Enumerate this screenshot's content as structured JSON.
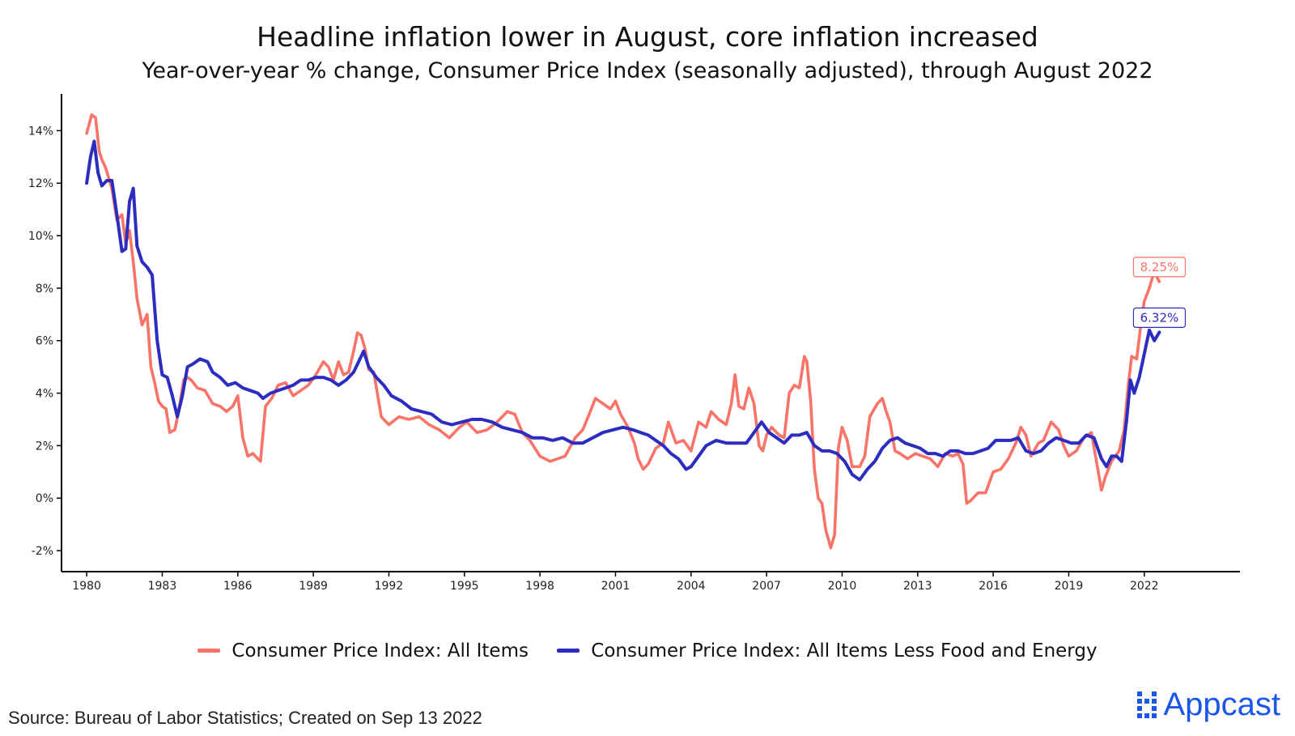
{
  "title": "Headline inflation lower in August, core inflation increased",
  "subtitle": "Year-over-year % change, Consumer Price Index (seasonally adjusted), through August 2022",
  "source": "Source: Bureau of Labor Statistics; Created on Sep 13 2022",
  "brand": {
    "name": "Appcast",
    "icon": "dot-grid-icon",
    "color": "#1a56e8"
  },
  "chart_data": {
    "type": "line",
    "title": "",
    "xlabel": "",
    "ylabel": "",
    "xlim": [
      1979.0,
      2025.8
    ],
    "ylim": [
      -2.8,
      15.4
    ],
    "x_ticks": [
      1980,
      1983,
      1986,
      1989,
      1992,
      1995,
      1998,
      2001,
      2004,
      2007,
      2010,
      2013,
      2016,
      2019,
      2022
    ],
    "x_tick_labels": [
      "1980",
      "1983",
      "1986",
      "1989",
      "1992",
      "1995",
      "1998",
      "2001",
      "2004",
      "2007",
      "2010",
      "2013",
      "2016",
      "2019",
      "2022"
    ],
    "y_ticks": [
      -2,
      0,
      2,
      4,
      6,
      8,
      10,
      12,
      14
    ],
    "y_tick_labels": [
      "-2%",
      "0%",
      "2%",
      "4%",
      "6%",
      "8%",
      "10%",
      "12%",
      "14%"
    ],
    "grid": false,
    "legend_position": "bottom",
    "series": [
      {
        "name": "Consumer Price Index: All Items",
        "color": "#f87368",
        "end_label": "8.25%",
        "x": [
          1980.0,
          1980.2,
          1980.35,
          1980.5,
          1980.6,
          1980.75,
          1981.0,
          1981.2,
          1981.4,
          1981.55,
          1981.7,
          1981.85,
          1982.0,
          1982.2,
          1982.4,
          1982.55,
          1982.7,
          1982.85,
          1983.0,
          1983.15,
          1983.3,
          1983.5,
          1983.65,
          1983.85,
          1984.0,
          1984.15,
          1984.4,
          1984.7,
          1985.0,
          1985.3,
          1985.55,
          1985.8,
          1986.0,
          1986.2,
          1986.4,
          1986.6,
          1986.9,
          1987.1,
          1987.35,
          1987.6,
          1987.9,
          1988.2,
          1988.5,
          1988.8,
          1989.1,
          1989.4,
          1989.6,
          1989.8,
          1990.0,
          1990.2,
          1990.4,
          1990.6,
          1990.75,
          1990.9,
          1991.05,
          1991.2,
          1991.4,
          1991.7,
          1992.0,
          1992.4,
          1992.8,
          1993.2,
          1993.6,
          1994.0,
          1994.4,
          1994.8,
          1995.1,
          1995.5,
          1995.9,
          1996.3,
          1996.7,
          1997.0,
          1997.3,
          1997.6,
          1998.0,
          1998.4,
          1998.7,
          1999.0,
          1999.4,
          1999.7,
          2000.0,
          2000.2,
          2000.5,
          2000.8,
          2001.0,
          2001.2,
          2001.5,
          2001.75,
          2001.9,
          2002.1,
          2002.3,
          2002.6,
          2002.9,
          2003.1,
          2003.4,
          2003.7,
          2004.0,
          2004.3,
          2004.6,
          2004.8,
          2005.1,
          2005.4,
          2005.6,
          2005.75,
          2005.9,
          2006.1,
          2006.3,
          2006.5,
          2006.7,
          2006.85,
          2007.0,
          2007.2,
          2007.5,
          2007.7,
          2007.9,
          2008.1,
          2008.3,
          2008.5,
          2008.6,
          2008.75,
          2008.9,
          2009.05,
          2009.2,
          2009.35,
          2009.55,
          2009.7,
          2009.85,
          2010.0,
          2010.2,
          2010.4,
          2010.7,
          2010.9,
          2011.1,
          2011.4,
          2011.6,
          2011.75,
          2011.9,
          2012.1,
          2012.3,
          2012.6,
          2012.9,
          2013.2,
          2013.5,
          2013.8,
          2014.1,
          2014.4,
          2014.6,
          2014.8,
          2014.95,
          2015.1,
          2015.4,
          2015.7,
          2016.0,
          2016.3,
          2016.6,
          2016.9,
          2017.1,
          2017.3,
          2017.5,
          2017.8,
          2018.0,
          2018.3,
          2018.6,
          2018.8,
          2019.0,
          2019.3,
          2019.6,
          2019.9,
          2020.1,
          2020.3,
          2020.45,
          2020.7,
          2021.0,
          2021.2,
          2021.35,
          2021.5,
          2021.7,
          2021.9,
          2022.0,
          2022.2,
          2022.35,
          2022.45,
          2022.6
        ],
        "y": [
          13.9,
          14.6,
          14.5,
          13.2,
          12.9,
          12.6,
          11.8,
          10.6,
          10.8,
          9.7,
          10.2,
          9.0,
          7.6,
          6.6,
          7.0,
          5.0,
          4.4,
          3.7,
          3.5,
          3.4,
          2.5,
          2.6,
          3.3,
          4.5,
          4.6,
          4.5,
          4.2,
          4.1,
          3.6,
          3.5,
          3.3,
          3.5,
          3.9,
          2.3,
          1.6,
          1.7,
          1.4,
          3.5,
          3.8,
          4.3,
          4.4,
          3.9,
          4.1,
          4.3,
          4.7,
          5.2,
          5.0,
          4.5,
          5.2,
          4.7,
          4.8,
          5.6,
          6.3,
          6.2,
          5.7,
          4.9,
          4.8,
          3.1,
          2.8,
          3.1,
          3.0,
          3.1,
          2.8,
          2.6,
          2.3,
          2.7,
          2.9,
          2.5,
          2.6,
          2.9,
          3.3,
          3.2,
          2.5,
          2.2,
          1.6,
          1.4,
          1.5,
          1.6,
          2.3,
          2.6,
          3.3,
          3.8,
          3.6,
          3.4,
          3.7,
          3.2,
          2.7,
          2.1,
          1.5,
          1.1,
          1.3,
          1.9,
          2.1,
          2.9,
          2.1,
          2.2,
          1.8,
          2.9,
          2.7,
          3.3,
          3.0,
          2.8,
          3.6,
          4.7,
          3.5,
          3.4,
          4.2,
          3.6,
          2.0,
          1.8,
          2.4,
          2.7,
          2.4,
          2.3,
          4.0,
          4.3,
          4.2,
          5.4,
          5.2,
          3.7,
          1.1,
          0.0,
          -0.2,
          -1.2,
          -1.9,
          -1.4,
          1.9,
          2.7,
          2.2,
          1.2,
          1.2,
          1.6,
          3.1,
          3.6,
          3.8,
          3.3,
          2.9,
          1.8,
          1.7,
          1.5,
          1.7,
          1.6,
          1.5,
          1.2,
          1.7,
          1.6,
          1.7,
          1.3,
          -0.2,
          -0.1,
          0.2,
          0.2,
          1.0,
          1.1,
          1.5,
          2.1,
          2.7,
          2.4,
          1.6,
          2.1,
          2.2,
          2.9,
          2.6,
          2.0,
          1.6,
          1.8,
          2.3,
          2.5,
          1.4,
          0.3,
          0.8,
          1.4,
          1.8,
          2.6,
          4.2,
          5.4,
          5.3,
          6.9,
          7.5,
          8.0,
          8.5,
          8.5,
          8.25
        ]
      },
      {
        "name": "Consumer Price Index: All Items Less Food and Energy",
        "color": "#2c2dc0",
        "end_label": "6.32%",
        "x": [
          1980.0,
          1980.15,
          1980.3,
          1980.45,
          1980.6,
          1980.8,
          1981.0,
          1981.2,
          1981.4,
          1981.55,
          1981.7,
          1981.85,
          1982.0,
          1982.2,
          1982.4,
          1982.6,
          1982.8,
          1983.0,
          1983.2,
          1983.4,
          1983.6,
          1983.8,
          1984.0,
          1984.2,
          1984.5,
          1984.8,
          1985.0,
          1985.3,
          1985.6,
          1985.9,
          1986.2,
          1986.5,
          1986.8,
          1987.0,
          1987.3,
          1987.6,
          1987.9,
          1988.2,
          1988.5,
          1988.8,
          1989.1,
          1989.4,
          1989.7,
          1990.0,
          1990.3,
          1990.6,
          1990.8,
          1991.0,
          1991.2,
          1991.5,
          1991.8,
          1992.1,
          1992.5,
          1992.9,
          1993.3,
          1993.7,
          1994.1,
          1994.5,
          1994.9,
          1995.3,
          1995.7,
          1996.1,
          1996.5,
          1996.9,
          1997.3,
          1997.7,
          1998.1,
          1998.5,
          1998.9,
          1999.3,
          1999.7,
          2000.1,
          2000.5,
          2000.9,
          2001.3,
          2001.7,
          2002.0,
          2002.3,
          2002.6,
          2002.9,
          2003.2,
          2003.5,
          2003.8,
          2004.0,
          2004.3,
          2004.6,
          2005.0,
          2005.4,
          2005.8,
          2006.2,
          2006.5,
          2006.8,
          2007.1,
          2007.4,
          2007.7,
          2008.0,
          2008.3,
          2008.6,
          2008.9,
          2009.2,
          2009.5,
          2009.8,
          2010.1,
          2010.4,
          2010.7,
          2011.0,
          2011.3,
          2011.6,
          2011.9,
          2012.2,
          2012.5,
          2012.8,
          2013.1,
          2013.4,
          2013.7,
          2014.0,
          2014.3,
          2014.6,
          2014.9,
          2015.2,
          2015.5,
          2015.8,
          2016.1,
          2016.4,
          2016.7,
          2017.0,
          2017.3,
          2017.6,
          2017.9,
          2018.2,
          2018.5,
          2018.8,
          2019.1,
          2019.4,
          2019.7,
          2020.0,
          2020.3,
          2020.5,
          2020.7,
          2020.9,
          2021.1,
          2021.3,
          2021.45,
          2021.6,
          2021.8,
          2022.0,
          2022.2,
          2022.4,
          2022.6
        ],
        "y": [
          12.0,
          13.0,
          13.6,
          12.4,
          11.9,
          12.1,
          12.1,
          10.8,
          9.4,
          9.5,
          11.3,
          11.8,
          9.6,
          9.0,
          8.8,
          8.5,
          6.0,
          4.7,
          4.6,
          3.9,
          3.1,
          3.9,
          5.0,
          5.1,
          5.3,
          5.2,
          4.8,
          4.6,
          4.3,
          4.4,
          4.2,
          4.1,
          4.0,
          3.8,
          4.0,
          4.1,
          4.2,
          4.3,
          4.5,
          4.5,
          4.6,
          4.6,
          4.5,
          4.3,
          4.5,
          4.8,
          5.2,
          5.6,
          5.0,
          4.6,
          4.3,
          3.9,
          3.7,
          3.4,
          3.3,
          3.2,
          2.9,
          2.8,
          2.9,
          3.0,
          3.0,
          2.9,
          2.7,
          2.6,
          2.5,
          2.3,
          2.3,
          2.2,
          2.3,
          2.1,
          2.1,
          2.3,
          2.5,
          2.6,
          2.7,
          2.6,
          2.5,
          2.4,
          2.2,
          2.0,
          1.7,
          1.5,
          1.1,
          1.2,
          1.6,
          2.0,
          2.2,
          2.1,
          2.1,
          2.1,
          2.5,
          2.9,
          2.5,
          2.3,
          2.1,
          2.4,
          2.4,
          2.5,
          2.0,
          1.8,
          1.8,
          1.7,
          1.4,
          0.9,
          0.7,
          1.1,
          1.4,
          1.9,
          2.2,
          2.3,
          2.1,
          2.0,
          1.9,
          1.7,
          1.7,
          1.6,
          1.8,
          1.8,
          1.7,
          1.7,
          1.8,
          1.9,
          2.2,
          2.2,
          2.2,
          2.3,
          1.8,
          1.7,
          1.8,
          2.1,
          2.3,
          2.2,
          2.1,
          2.1,
          2.4,
          2.3,
          1.5,
          1.2,
          1.6,
          1.6,
          1.4,
          3.0,
          4.5,
          4.0,
          4.6,
          5.5,
          6.4,
          6.0,
          6.32
        ]
      }
    ]
  }
}
